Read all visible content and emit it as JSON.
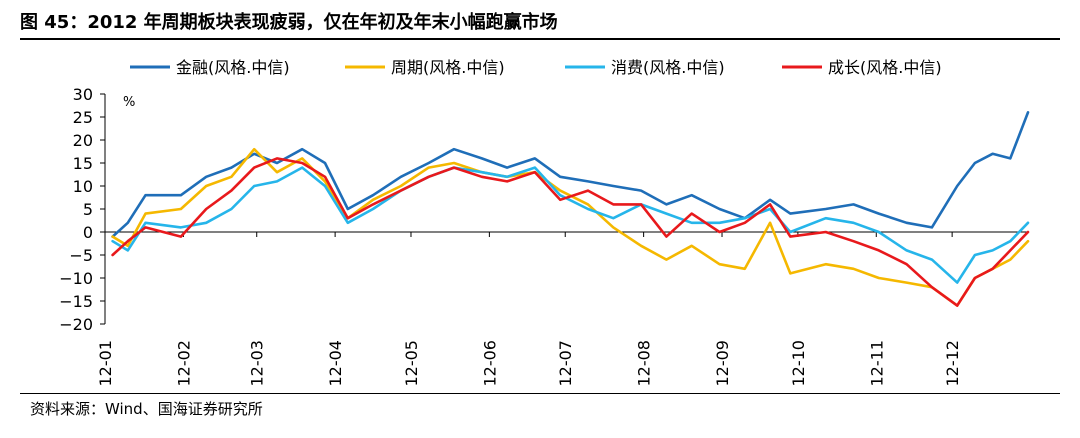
{
  "title": "图 45：2012 年周期板块表现疲弱，仅在年初及年末小幅跑赢市场",
  "source": "资料来源：Wind、国海证券研究所",
  "chart_data": {
    "type": "line",
    "unit": "%",
    "ylim": [
      -20,
      30
    ],
    "yticks": [
      30,
      25,
      20,
      15,
      10,
      5,
      0,
      -5,
      -10,
      -15,
      -20
    ],
    "ytick_labels": [
      "30",
      "25",
      "20",
      "15",
      "10",
      "5",
      "0",
      "−5",
      "−10",
      "−15",
      "−20"
    ],
    "xlim": [
      "2012-01-01",
      "2012-12-31"
    ],
    "xticks": [
      "2012-01-01",
      "2012-02-01",
      "2012-03-01",
      "2012-04-01",
      "2012-05-01",
      "2012-06-01",
      "2012-07-01",
      "2012-08-01",
      "2012-09-01",
      "2012-10-01",
      "2012-11-01",
      "2012-12-01"
    ],
    "xtick_labels": [
      "12-01",
      "12-02",
      "12-03",
      "12-04",
      "12-05",
      "12-06",
      "12-07",
      "12-08",
      "12-09",
      "12-10",
      "12-11",
      "12-12"
    ],
    "grid": false,
    "legend_position": "top",
    "x": [
      "2012-01-04",
      "2012-01-10",
      "2012-01-17",
      "2012-01-31",
      "2012-02-10",
      "2012-02-20",
      "2012-02-29",
      "2012-03-09",
      "2012-03-19",
      "2012-03-28",
      "2012-04-06",
      "2012-04-16",
      "2012-04-27",
      "2012-05-08",
      "2012-05-18",
      "2012-05-29",
      "2012-06-08",
      "2012-06-19",
      "2012-06-29",
      "2012-07-10",
      "2012-07-20",
      "2012-07-31",
      "2012-08-10",
      "2012-08-20",
      "2012-08-31",
      "2012-09-10",
      "2012-09-20",
      "2012-09-28",
      "2012-10-12",
      "2012-10-23",
      "2012-11-02",
      "2012-11-13",
      "2012-11-23",
      "2012-12-03",
      "2012-12-10",
      "2012-12-17",
      "2012-12-24",
      "2012-12-31"
    ],
    "series": [
      {
        "name": "金融(风格.中信)",
        "color": "#1f6eb8",
        "values": [
          -1,
          2,
          8,
          8,
          12,
          14,
          17,
          15,
          18,
          15,
          5,
          8,
          12,
          15,
          18,
          16,
          14,
          16,
          12,
          11,
          10,
          9,
          6,
          8,
          5,
          3,
          7,
          4,
          5,
          6,
          4,
          2,
          1,
          10,
          15,
          17,
          16,
          26
        ]
      },
      {
        "name": "周期(风格.中信)",
        "color": "#f5b800",
        "values": [
          -1,
          -3,
          4,
          5,
          10,
          12,
          18,
          13,
          16,
          11,
          3,
          7,
          10,
          14,
          15,
          13,
          12,
          13,
          9,
          6,
          1,
          -3,
          -6,
          -3,
          -7,
          -8,
          2,
          -9,
          -7,
          -8,
          -10,
          -11,
          -12,
          -16,
          -10,
          -8,
          -6,
          -2
        ]
      },
      {
        "name": "消费(风格.中信)",
        "color": "#26b5ea",
        "values": [
          -2,
          -4,
          2,
          1,
          2,
          5,
          10,
          11,
          14,
          10,
          2,
          5,
          9,
          12,
          14,
          13,
          12,
          14,
          8,
          5,
          3,
          6,
          4,
          2,
          2,
          3,
          5,
          0,
          3,
          2,
          0,
          -4,
          -6,
          -11,
          -5,
          -4,
          -2,
          2
        ]
      },
      {
        "name": "成长(风格.中信)",
        "color": "#e8191c",
        "values": [
          -5,
          -2,
          1,
          -1,
          5,
          9,
          14,
          16,
          15,
          12,
          3,
          6,
          9,
          12,
          14,
          12,
          11,
          13,
          7,
          9,
          6,
          6,
          -1,
          4,
          0,
          2,
          6,
          -1,
          0,
          -2,
          -4,
          -7,
          -12,
          -16,
          -10,
          -8,
          -4,
          0
        ]
      }
    ]
  }
}
